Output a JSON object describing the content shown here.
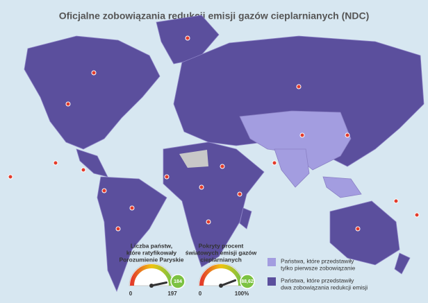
{
  "header": {
    "title": "Oficjalne zobowiązania redukcji emisji gazów cieplarnianych (NDC)"
  },
  "gauges": [
    {
      "title": [
        "Liczba państw,",
        "które ratyfikowały",
        "Porozumienie Paryskie"
      ],
      "min": 0,
      "max": 197,
      "value": 184
    },
    {
      "title": [
        "Pokryty procent",
        "światowych emisji gazów",
        "cieplarnianych"
      ],
      "min": 0,
      "max": {
        "value": 100,
        "label": "100%"
      },
      "value": {
        "value": 88.62,
        "label": "88,62"
      }
    }
  ],
  "legend": [
    {
      "color": "#a39de0",
      "lines": [
        "Państwa, które przedstawiły",
        "tylko pierwsze zobowiązanie"
      ]
    },
    {
      "color": "#5b4f9d",
      "lines": [
        "Państwa, które przedstawiły",
        "dwa zobowiązania redukcji emisji"
      ]
    }
  ]
}
